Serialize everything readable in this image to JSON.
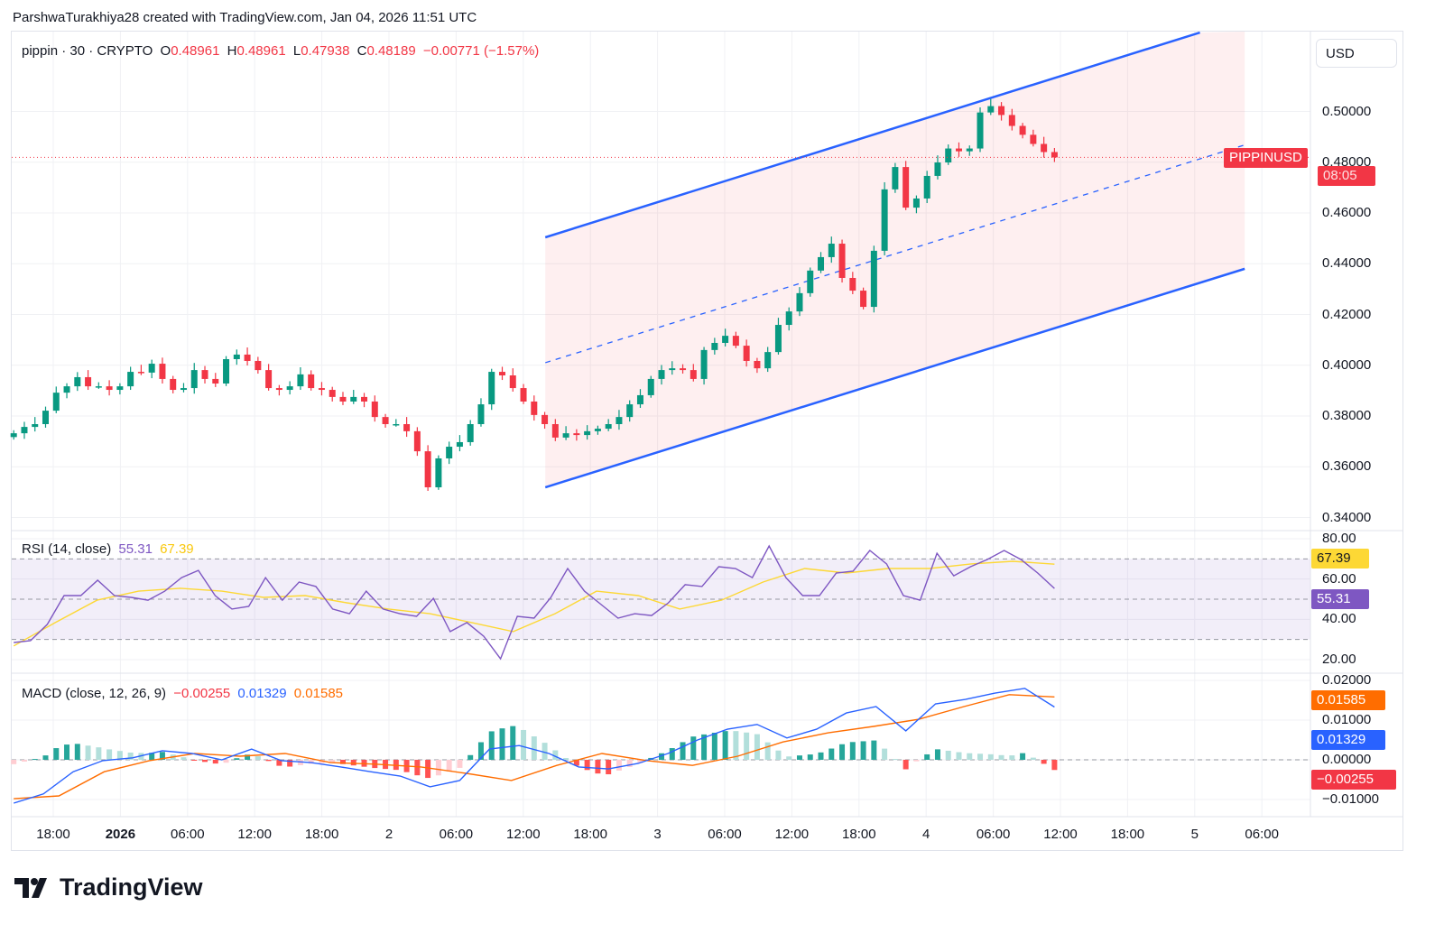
{
  "attribution": "ParshwaTurakhiya28 created with TradingView.com, Jan 04, 2026 11:51 UTC",
  "header": {
    "symbol": "pippin · 30 · CRYPTO",
    "o_label": "O",
    "o": "0.48961",
    "h_label": "H",
    "h": "0.48961",
    "l_label": "L",
    "l": "0.47938",
    "c_label": "C",
    "c": "0.48189",
    "change": "−0.00771 (−1.57%)"
  },
  "currency_button": "USD",
  "price_tag": {
    "symbol": "PIPPINUSD",
    "countdown": "08:05"
  },
  "rsi_legend": {
    "title": "RSI (14, close)",
    "rsi": "55.31",
    "ma": "67.39"
  },
  "macd_legend": {
    "title": "MACD (close, 12, 26, 9)",
    "hist": "−0.00255",
    "macd": "0.01329",
    "signal": "0.01585"
  },
  "brand": "TradingView",
  "colors": {
    "up": "#089981",
    "down": "#f23645",
    "channel": "#2962ff",
    "rsi": "#7e57c2",
    "rsi_ma": "#fdd835",
    "macd": "#2962ff",
    "signal": "#ff6d00"
  },
  "chart_data": [
    {
      "type": "candlestick",
      "title": "pippin · 30 · CRYPTO",
      "x_ticks": [
        "18:00",
        "2026",
        "06:00",
        "12:00",
        "18:00",
        "2",
        "06:00",
        "12:00",
        "18:00",
        "3",
        "06:00",
        "12:00",
        "18:00",
        "4",
        "06:00",
        "12:00",
        "18:00",
        "5",
        "06:00"
      ],
      "y_ticks": [
        "0.50000",
        "0.48000",
        "0.46000",
        "0.44000",
        "0.42000",
        "0.40000",
        "0.38000",
        "0.36000",
        "0.34000"
      ],
      "ylim": [
        0.3345,
        0.5315
      ],
      "first_bar": "2025-12-31 14:30",
      "last_bar": "2026-01-04 11:30",
      "last_price": 0.48189,
      "close": [
        0.3732,
        0.3757,
        0.3768,
        0.3821,
        0.3892,
        0.3917,
        0.3953,
        0.3917,
        0.3917,
        0.3903,
        0.3917,
        0.3974,
        0.3971,
        0.4006,
        0.3946,
        0.3903,
        0.391,
        0.3981,
        0.3946,
        0.3928,
        0.4024,
        0.4042,
        0.4017,
        0.3981,
        0.391,
        0.3903,
        0.3917,
        0.3964,
        0.391,
        0.3903,
        0.3875,
        0.3857,
        0.3875,
        0.3857,
        0.3796,
        0.3768,
        0.3768,
        0.374,
        0.3661,
        0.3519,
        0.3633,
        0.3679,
        0.3697,
        0.3768,
        0.3846,
        0.3974,
        0.396,
        0.391,
        0.3857,
        0.3804,
        0.3768,
        0.3715,
        0.3732,
        0.3725,
        0.374,
        0.375,
        0.3768,
        0.3796,
        0.3846,
        0.3882,
        0.3946,
        0.3981,
        0.3988,
        0.3981,
        0.3946,
        0.406,
        0.4088,
        0.4116,
        0.4077,
        0.4017,
        0.3988,
        0.4052,
        0.4159,
        0.4212,
        0.4284,
        0.4373,
        0.4426,
        0.4479,
        0.4344,
        0.4294,
        0.423,
        0.4451,
        0.4693,
        0.4781,
        0.4621,
        0.4657,
        0.4746,
        0.4799,
        0.4854,
        0.4843,
        0.4854,
        0.4996,
        0.5021,
        0.4986,
        0.4943,
        0.4908,
        0.4872,
        0.484,
        0.48189
      ],
      "channel": {
        "upper": [
          [
            "2026-01-02 14:00",
            0.4504
          ],
          [
            "2026-01-05 00:30",
            0.5311
          ]
        ],
        "middle": [
          [
            "2026-01-02 14:00",
            0.401
          ],
          [
            "2026-01-05 04:30",
            0.4868
          ]
        ],
        "lower": [
          [
            "2026-01-02 14:00",
            0.3519
          ],
          [
            "2026-01-05 04:30",
            0.438
          ]
        ]
      }
    },
    {
      "type": "line",
      "title": "RSI (14, close)",
      "y_ticks": [
        "80.00",
        "60.00",
        "40.00",
        "20.00"
      ],
      "ylim": [
        15,
        80
      ],
      "bands": [
        70,
        50,
        30
      ],
      "last_values": {
        "rsi": "55.31",
        "ma": "67.39"
      },
      "series": [
        {
          "name": "RSI",
          "values": [
            28.5,
            29.4,
            37.5,
            51.8,
            51.8,
            59.4,
            51.8,
            50.9,
            49.5,
            54.0,
            60.7,
            64.3,
            51.8,
            45.1,
            46.4,
            60.7,
            49.5,
            58.5,
            56.3,
            45.1,
            42.8,
            54.0,
            45.1,
            42.8,
            41.5,
            50.4,
            33.9,
            38.4,
            31.6,
            20.4,
            41.5,
            40.6,
            50.9,
            65.2,
            54.0,
            47.3,
            40.6,
            42.8,
            41.9,
            48.2,
            57.2,
            56.3,
            66.1,
            65.2,
            60.7,
            76.4,
            60.7,
            51.8,
            51.8,
            63.0,
            63.9,
            74.2,
            67.5,
            51.8,
            49.5,
            72.8,
            61.6,
            66.1,
            69.7,
            74.2,
            69.7,
            63.0,
            55.31
          ]
        },
        {
          "name": "MA",
          "values": [
            26.8,
            38.4,
            49.5,
            54.0,
            55.4,
            54.0,
            50.9,
            51.8,
            48.2,
            45.1,
            42.8,
            38.4,
            33.9,
            42.8,
            54.0,
            51.8,
            45.1,
            49.5,
            58.5,
            65.2,
            63.0,
            65.2,
            65.2,
            67.5,
            68.8,
            67.39
          ]
        }
      ]
    },
    {
      "type": "line",
      "title": "MACD (close, 12, 26, 9)",
      "y_ticks": [
        "0.02000",
        "0.01000",
        "0.00000",
        "−0.01000"
      ],
      "ylim": [
        -0.0145,
        0.0215
      ],
      "last_values": {
        "histogram": "−0.00255",
        "macd": "0.01329",
        "signal": "0.01585"
      },
      "series": [
        {
          "name": "MACD",
          "values": [
            -0.0109,
            -0.0086,
            -0.003,
            -0.0002,
            0.0005,
            0.0023,
            0.0016,
            0.0,
            0.0027,
            -0.0002,
            -0.0007,
            -0.0018,
            -0.003,
            -0.0041,
            -0.0068,
            -0.0052,
            0.0027,
            0.0036,
            0.0016,
            -0.0018,
            -0.0023,
            -0.0009,
            0.0016,
            0.005,
            0.0077,
            0.0089,
            0.0055,
            0.0077,
            0.0118,
            0.0134,
            0.0073,
            0.0141,
            0.0152,
            0.0168,
            0.018,
            0.01329
          ]
        },
        {
          "name": "Signal",
          "values": [
            -0.0098,
            -0.0091,
            -0.003,
            -0.0002,
            0.0016,
            0.0009,
            0.0016,
            -0.0007,
            -0.0011,
            -0.0018,
            -0.0034,
            -0.0052,
            -0.0014,
            0.0016,
            -0.0002,
            -0.0014,
            0.0009,
            0.0045,
            0.0068,
            0.0084,
            0.0102,
            0.0134,
            0.0164,
            0.01585
          ]
        }
      ]
    }
  ]
}
